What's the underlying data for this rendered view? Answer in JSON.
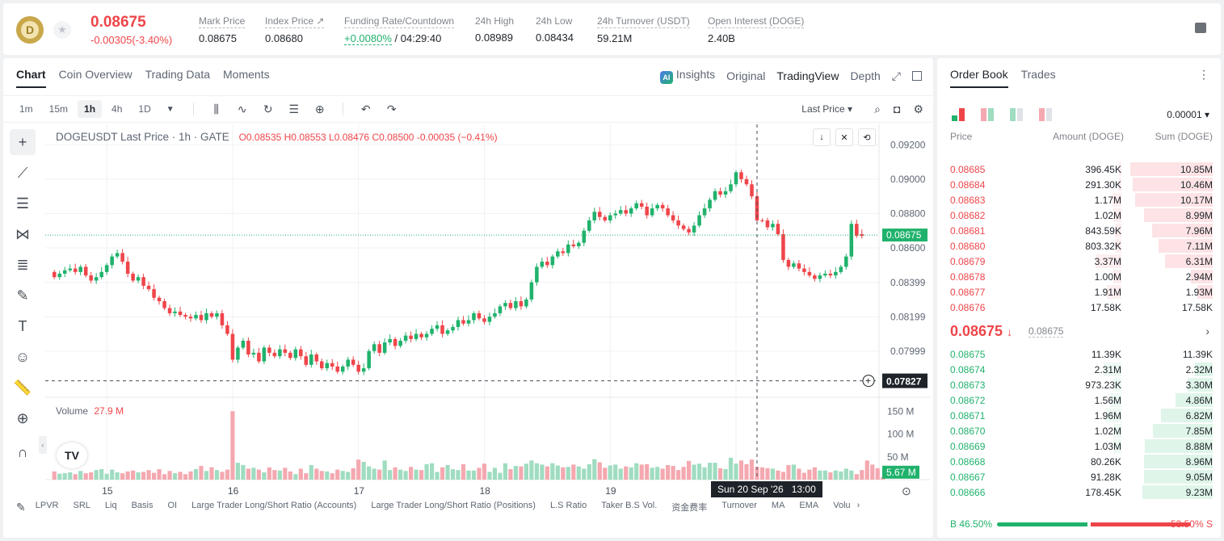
{
  "ticker": {
    "price": "0.08675",
    "change": "-0.00305(-3.40%)",
    "logo_letter": "D",
    "stats": [
      {
        "label": "Mark Price",
        "value": "0.08675"
      },
      {
        "label": "Index Price ↗",
        "value": "0.08680"
      },
      {
        "label": "Funding Rate/Countdown",
        "value_green": "+0.0080%",
        "value_rest": " / 04:29:40"
      },
      {
        "label": "24h High",
        "value": "0.08989"
      },
      {
        "label": "24h Low",
        "value": "0.08434"
      },
      {
        "label": "24h Turnover (USDT)",
        "value": "59.21M"
      },
      {
        "label": "Open Interest (DOGE)",
        "value": "2.40B"
      }
    ]
  },
  "chart_tabs": [
    "Chart",
    "Coin Overview",
    "Trading Data",
    "Moments"
  ],
  "view_tabs": {
    "ai": "AI",
    "insights": "Insights",
    "original": "Original",
    "tradingview": "TradingView",
    "depth": "Depth"
  },
  "intervals": [
    "1m",
    "15m",
    "1h",
    "4h",
    "1D"
  ],
  "last_price_select": "Last Price",
  "legend": {
    "symbol": "DOGEUSDT Last Price · 1h · GATE",
    "o": "O0.08535",
    "h": "H0.08553",
    "l": "L0.08476",
    "c": "C0.08500",
    "chg": "-0.00035 (−0.41%)"
  },
  "volume_legend": {
    "label": "Volume",
    "value": "27.9 M"
  },
  "crosshair": {
    "date": "Sun 20 Sep '26",
    "time": "13:00"
  },
  "indicators": [
    "LPVR",
    "SRL",
    "Liq",
    "Basis",
    "OI",
    "Large Trader Long/Short Ratio (Accounts)",
    "Large Trader Long/Short Ratio (Positions)",
    "L.S Ratio",
    "Taker B.S Vol.",
    "资金费率",
    "Turnover",
    "MA",
    "EMA",
    "Volu"
  ],
  "colors": {
    "up": "#20b26c",
    "down": "#ef454a",
    "vol_up": "#9fdcc0",
    "vol_down": "#f4a8b0"
  },
  "chart_data": {
    "type": "candlestick",
    "x_ticks": [
      "15",
      "16",
      "17",
      "18",
      "19",
      "20"
    ],
    "x_tick_index": [
      10,
      34,
      58,
      82,
      106,
      130
    ],
    "price_ticks": [
      "0.09200",
      "0.09000",
      "0.08800",
      "0.08600",
      "0.08399",
      "0.08199",
      "0.07999"
    ],
    "price_tick_values": [
      0.092,
      0.09,
      0.088,
      0.086,
      0.08399,
      0.08199,
      0.07999
    ],
    "ylim": [
      0.0775,
      0.093
    ],
    "last_price": "0.08675",
    "last_price_value": 0.08675,
    "crosshair_price": "0.07827",
    "crosshair_price_value": 0.07827,
    "crosshair_index": 134,
    "volume_ticks": [
      "150 M",
      "100 M",
      "50 M"
    ],
    "volume_tick_values": [
      150,
      100,
      50
    ],
    "volume_ylim": [
      0,
      170
    ],
    "current_volume": "5.67 M",
    "current_volume_value": 5.67,
    "closes": [
      0.0843,
      0.0845,
      0.0847,
      0.0848,
      0.0846,
      0.0849,
      0.0844,
      0.0841,
      0.0843,
      0.0846,
      0.085,
      0.0855,
      0.0857,
      0.0852,
      0.0845,
      0.0841,
      0.0843,
      0.0838,
      0.0836,
      0.0831,
      0.0829,
      0.0825,
      0.0822,
      0.0823,
      0.0821,
      0.082,
      0.0819,
      0.0821,
      0.0818,
      0.0822,
      0.082,
      0.0822,
      0.0815,
      0.081,
      0.0795,
      0.0802,
      0.0806,
      0.0798,
      0.0799,
      0.0794,
      0.0802,
      0.0799,
      0.0797,
      0.0801,
      0.0799,
      0.0796,
      0.0801,
      0.0797,
      0.0792,
      0.0798,
      0.0794,
      0.079,
      0.0793,
      0.0791,
      0.0788,
      0.0791,
      0.0795,
      0.0792,
      0.0788,
      0.079,
      0.08,
      0.0804,
      0.0799,
      0.0805,
      0.0807,
      0.0803,
      0.0806,
      0.0809,
      0.0807,
      0.081,
      0.0808,
      0.081,
      0.0813,
      0.0815,
      0.081,
      0.0812,
      0.0814,
      0.0818,
      0.0816,
      0.0818,
      0.0822,
      0.0819,
      0.0817,
      0.082,
      0.0822,
      0.0826,
      0.0828,
      0.0825,
      0.0829,
      0.0826,
      0.083,
      0.084,
      0.0849,
      0.0852,
      0.085,
      0.0855,
      0.0858,
      0.0857,
      0.0862,
      0.0861,
      0.0863,
      0.087,
      0.0876,
      0.0881,
      0.0878,
      0.0876,
      0.0879,
      0.088,
      0.0882,
      0.088,
      0.0883,
      0.0886,
      0.0884,
      0.0879,
      0.0883,
      0.0885,
      0.0883,
      0.0879,
      0.0876,
      0.0873,
      0.0871,
      0.0869,
      0.0873,
      0.0879,
      0.0883,
      0.0888,
      0.0893,
      0.0891,
      0.0893,
      0.0897,
      0.0904,
      0.09,
      0.0897,
      0.089,
      0.0876,
      0.0876,
      0.0872,
      0.0874,
      0.0868,
      0.0853,
      0.0849,
      0.0851,
      0.0848,
      0.0846,
      0.0844,
      0.0842,
      0.0844,
      0.0845,
      0.0844,
      0.0846,
      0.0849,
      0.0855,
      0.0874,
      0.0867,
      0.0868
    ],
    "volumes": [
      18,
      13,
      14,
      16,
      12,
      19,
      14,
      16,
      21,
      23,
      13,
      22,
      16,
      14,
      18,
      20,
      16,
      17,
      21,
      15,
      23,
      12,
      19,
      14,
      17,
      12,
      18,
      23,
      30,
      19,
      27,
      21,
      17,
      22,
      150,
      37,
      32,
      24,
      26,
      22,
      16,
      27,
      21,
      20,
      26,
      18,
      12,
      24,
      14,
      32,
      24,
      19,
      18,
      14,
      22,
      19,
      17,
      25,
      44,
      39,
      29,
      24,
      22,
      42,
      21,
      27,
      22,
      19,
      28,
      22,
      21,
      34,
      36,
      17,
      27,
      32,
      23,
      21,
      34,
      20,
      20,
      26,
      35,
      17,
      26,
      15,
      36,
      23,
      30,
      29,
      35,
      42,
      36,
      33,
      29,
      36,
      31,
      27,
      28,
      33,
      29,
      24,
      34,
      45,
      38,
      26,
      31,
      33,
      24,
      29,
      27,
      36,
      33,
      34,
      26,
      28,
      24,
      32,
      30,
      21,
      28,
      41,
      33,
      35,
      27,
      37,
      37,
      25,
      23,
      48,
      35,
      42,
      34,
      44,
      28,
      27,
      25,
      24,
      20,
      17,
      32,
      33,
      24,
      15,
      22,
      27,
      20,
      20,
      16,
      20,
      18,
      24,
      20,
      12,
      21,
      42,
      33,
      25,
      6
    ],
    "up": [
      0,
      1,
      1,
      1,
      0,
      1,
      0,
      0,
      1,
      1,
      1,
      1,
      1,
      0,
      0,
      0,
      1,
      0,
      0,
      0,
      0,
      0,
      0,
      1,
      0,
      0,
      0,
      1,
      0,
      1,
      0,
      1,
      0,
      0,
      0,
      1,
      1,
      0,
      1,
      0,
      1,
      0,
      0,
      1,
      0,
      0,
      1,
      0,
      0,
      1,
      0,
      0,
      1,
      0,
      0,
      1,
      1,
      0,
      0,
      1,
      1,
      1,
      0,
      1,
      1,
      0,
      1,
      1,
      0,
      1,
      0,
      1,
      1,
      1,
      0,
      1,
      1,
      1,
      0,
      1,
      1,
      0,
      0,
      1,
      1,
      1,
      1,
      0,
      1,
      0,
      1,
      1,
      1,
      1,
      0,
      1,
      1,
      0,
      1,
      0,
      1,
      1,
      1,
      1,
      0,
      0,
      1,
      1,
      1,
      0,
      1,
      1,
      0,
      0,
      1,
      1,
      0,
      0,
      0,
      0,
      0,
      0,
      1,
      1,
      1,
      1,
      1,
      0,
      1,
      1,
      1,
      0,
      0,
      0,
      0,
      0,
      0,
      1,
      0,
      0,
      0,
      1,
      0,
      0,
      0,
      0,
      1,
      1,
      0,
      1,
      1,
      1,
      1,
      0,
      0
    ]
  },
  "order_book": {
    "tabs": [
      "Order Book",
      "Trades"
    ],
    "precision": "0.00001",
    "headers": {
      "price": "Price",
      "amount": "Amount (DOGE)",
      "sum": "Sum (DOGE)"
    },
    "asks": [
      {
        "price": "0.08685",
        "amount": "396.45K",
        "sum": "10.85M",
        "depth": 0.93
      },
      {
        "price": "0.08684",
        "amount": "291.30K",
        "sum": "10.46M",
        "depth": 0.9
      },
      {
        "price": "0.08683",
        "amount": "1.17M",
        "sum": "10.17M",
        "depth": 0.87
      },
      {
        "price": "0.08682",
        "amount": "1.02M",
        "sum": "8.99M",
        "depth": 0.77
      },
      {
        "price": "0.08681",
        "amount": "843.59K",
        "sum": "7.96M",
        "depth": 0.68
      },
      {
        "price": "0.08680",
        "amount": "803.32K",
        "sum": "7.11M",
        "depth": 0.61
      },
      {
        "price": "0.08679",
        "amount": "3.37M",
        "sum": "6.31M",
        "depth": 0.54
      },
      {
        "price": "0.08678",
        "amount": "1.00M",
        "sum": "2.94M",
        "depth": 0.25
      },
      {
        "price": "0.08677",
        "amount": "1.91M",
        "sum": "1.93M",
        "depth": 0.17
      },
      {
        "price": "0.08676",
        "amount": "17.58K",
        "sum": "17.58K",
        "depth": 0.0
      }
    ],
    "ask_amount_depth": [
      0.03,
      0.025,
      0.1,
      0.09,
      0.07,
      0.07,
      0.29,
      0.09,
      0.16,
      0.0
    ],
    "mid_price": "0.08675",
    "mid_arrow": "↓",
    "mark_price": "0.08675",
    "bids": [
      {
        "price": "0.08675",
        "amount": "11.39K",
        "sum": "11.39K",
        "depth": 0.0
      },
      {
        "price": "0.08674",
        "amount": "2.31M",
        "sum": "2.32M",
        "depth": 0.2
      },
      {
        "price": "0.08673",
        "amount": "973.23K",
        "sum": "3.30M",
        "depth": 0.28
      },
      {
        "price": "0.08672",
        "amount": "1.56M",
        "sum": "4.86M",
        "depth": 0.42
      },
      {
        "price": "0.08671",
        "amount": "1.96M",
        "sum": "6.82M",
        "depth": 0.58
      },
      {
        "price": "0.08670",
        "amount": "1.02M",
        "sum": "7.85M",
        "depth": 0.67
      },
      {
        "price": "0.08669",
        "amount": "1.03M",
        "sum": "8.88M",
        "depth": 0.76
      },
      {
        "price": "0.08668",
        "amount": "80.26K",
        "sum": "8.96M",
        "depth": 0.77
      },
      {
        "price": "0.08667",
        "amount": "91.28K",
        "sum": "9.05M",
        "depth": 0.77
      },
      {
        "price": "0.08666",
        "amount": "178.45K",
        "sum": "9.23M",
        "depth": 0.79
      }
    ],
    "bid_amount_depth": [
      0.0,
      0.2,
      0.08,
      0.13,
      0.17,
      0.09,
      0.09,
      0.0,
      0.0,
      0.0
    ],
    "buy_ratio": "B 46.50%",
    "sell_ratio": "53.50% S",
    "buy_pct": 46.5
  }
}
